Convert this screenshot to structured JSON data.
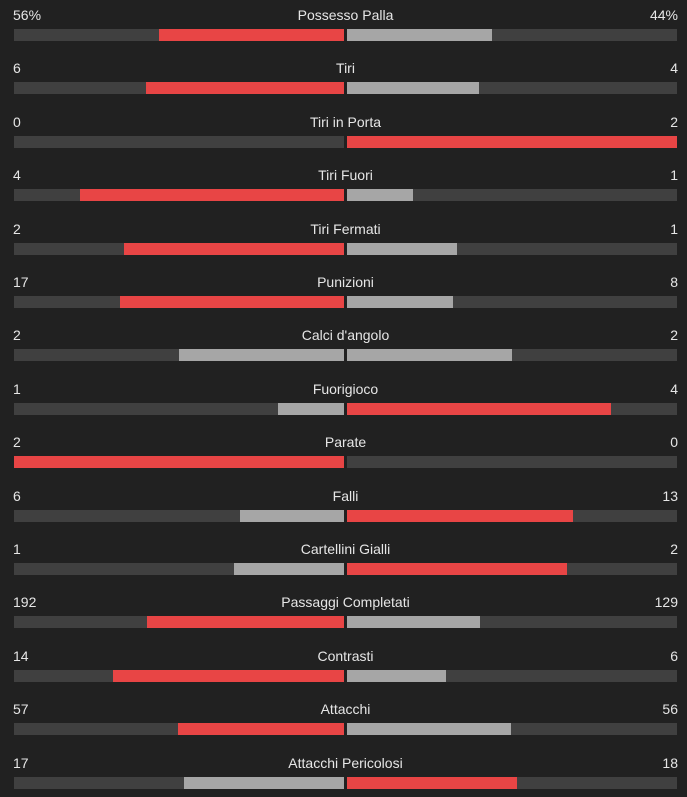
{
  "colors": {
    "background": "#212121",
    "track": "#404040",
    "winner": "#e84545",
    "loser": "#a6a6a6",
    "text": "#e6e6e6"
  },
  "stats": [
    {
      "label": "Possesso Palla",
      "home": "56%",
      "away": "44%",
      "home_fill": 0.56,
      "away_fill": 0.44
    },
    {
      "label": "Tiri",
      "home": "6",
      "away": "4",
      "home_fill": 0.6,
      "away_fill": 0.4
    },
    {
      "label": "Tiri in Porta",
      "home": "0",
      "away": "2",
      "home_fill": 0.0,
      "away_fill": 1.0
    },
    {
      "label": "Tiri Fuori",
      "home": "4",
      "away": "1",
      "home_fill": 0.8,
      "away_fill": 0.2
    },
    {
      "label": "Tiri Fermati",
      "home": "2",
      "away": "1",
      "home_fill": 0.667,
      "away_fill": 0.333
    },
    {
      "label": "Punizioni",
      "home": "17",
      "away": "8",
      "home_fill": 0.68,
      "away_fill": 0.32
    },
    {
      "label": "Calci d'angolo",
      "home": "2",
      "away": "2",
      "home_fill": 0.5,
      "away_fill": 0.5
    },
    {
      "label": "Fuorigioco",
      "home": "1",
      "away": "4",
      "home_fill": 0.2,
      "away_fill": 0.8
    },
    {
      "label": "Parate",
      "home": "2",
      "away": "0",
      "home_fill": 1.0,
      "away_fill": 0.0
    },
    {
      "label": "Falli",
      "home": "6",
      "away": "13",
      "home_fill": 0.316,
      "away_fill": 0.684
    },
    {
      "label": "Cartellini Gialli",
      "home": "1",
      "away": "2",
      "home_fill": 0.333,
      "away_fill": 0.667
    },
    {
      "label": "Passaggi Completati",
      "home": "192",
      "away": "129",
      "home_fill": 0.598,
      "away_fill": 0.402
    },
    {
      "label": "Contrasti",
      "home": "14",
      "away": "6",
      "home_fill": 0.7,
      "away_fill": 0.3
    },
    {
      "label": "Attacchi",
      "home": "57",
      "away": "56",
      "home_fill": 0.504,
      "away_fill": 0.496
    },
    {
      "label": "Attacchi Pericolosi",
      "home": "17",
      "away": "18",
      "home_fill": 0.486,
      "away_fill": 0.514
    }
  ]
}
